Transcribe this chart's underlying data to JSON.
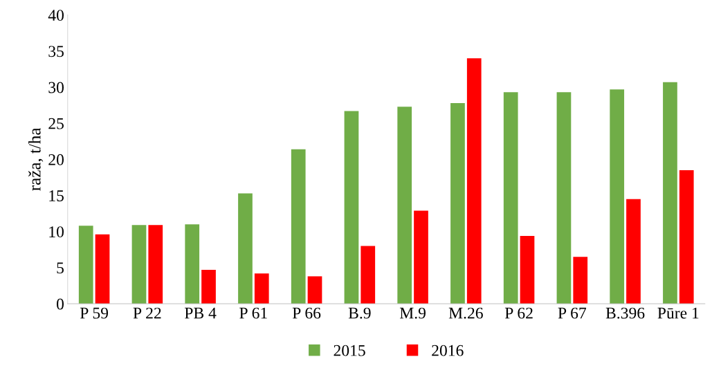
{
  "chart_data": {
    "type": "bar",
    "ylabel": "raža, t/ha",
    "categories": [
      "P 59",
      "P 22",
      "PB 4",
      "P 61",
      "P 66",
      "B.9",
      "M.9",
      "M.26",
      "P 62",
      "P 67",
      "B.396",
      "Pūre 1"
    ],
    "series": [
      {
        "name": "2015",
        "color": "#70ad47",
        "values": [
          10.8,
          10.9,
          11.0,
          15.3,
          21.4,
          26.7,
          27.3,
          27.8,
          29.3,
          29.3,
          29.7,
          30.7
        ]
      },
      {
        "name": "2016",
        "color": "#ff0000",
        "values": [
          9.6,
          10.9,
          4.7,
          4.2,
          3.8,
          8.0,
          12.9,
          34.0,
          9.4,
          6.5,
          14.5,
          18.5
        ]
      }
    ],
    "ylim": [
      0,
      40
    ],
    "yticks": [
      0,
      5,
      10,
      15,
      20,
      25,
      30,
      35,
      40
    ],
    "grid": false,
    "legend": "bottom"
  }
}
